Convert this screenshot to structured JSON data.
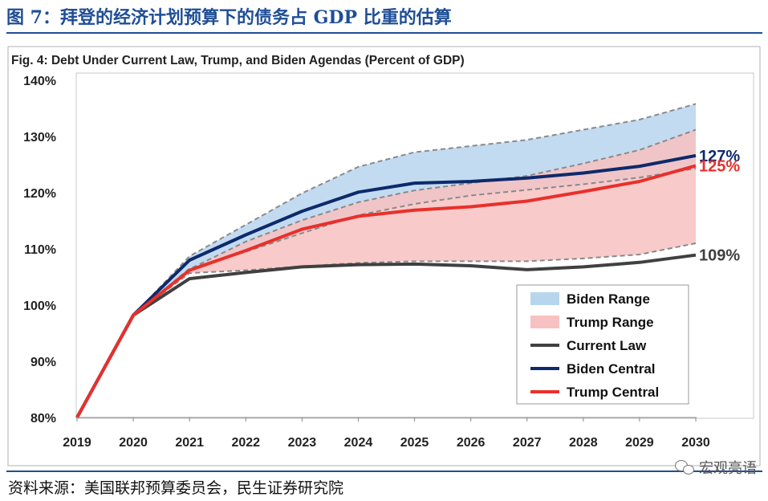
{
  "figure_title": "图 7：拜登的经济计划预算下的债务占 GDP 比重的估算",
  "source": "资料来源：美国联邦预算委员会，民生证券研究院",
  "watermark": "宏观亮语",
  "chart_data": {
    "type": "line",
    "title": "Fig. 4: Debt Under Current Law, Trump, and Biden Agendas (Percent of GDP)",
    "xlabel": "",
    "ylabel": "",
    "x": [
      2019,
      2020,
      2021,
      2022,
      2023,
      2024,
      2025,
      2026,
      2027,
      2028,
      2029,
      2030
    ],
    "ylim": [
      80,
      140
    ],
    "yticks": [
      80,
      90,
      100,
      110,
      120,
      130,
      140
    ],
    "ytick_labels": [
      "80%",
      "90%",
      "100%",
      "110%",
      "120%",
      "130%",
      "140%"
    ],
    "grid": false,
    "legend_position": "lower-right",
    "series": [
      {
        "name": "Current Law",
        "color": "#404040",
        "values": [
          80,
          98.2,
          104.7,
          105.8,
          106.8,
          107.2,
          107.3,
          107.0,
          106.3,
          106.8,
          107.6,
          108.9
        ]
      },
      {
        "name": "Biden Central",
        "color": "#0d2a6b",
        "values": [
          80,
          98.2,
          108.0,
          112.5,
          116.7,
          120.1,
          121.7,
          122.0,
          122.6,
          123.5,
          124.7,
          126.6
        ]
      },
      {
        "name": "Trump Central",
        "color": "#e8302b",
        "values": [
          80,
          98.2,
          106.2,
          109.7,
          113.5,
          115.8,
          116.9,
          117.5,
          118.5,
          120.2,
          122.0,
          124.8
        ]
      }
    ],
    "bands": [
      {
        "name": "Biden Range",
        "color": "#b8d5ee",
        "low": [
          80,
          98.2,
          106.5,
          109.5,
          112.8,
          116.0,
          118.0,
          119.5,
          120.5,
          121.5,
          122.7,
          124.3
        ],
        "high": [
          80,
          98.2,
          108.7,
          114.3,
          119.9,
          124.6,
          127.2,
          128.3,
          129.4,
          131.2,
          133.0,
          135.8
        ]
      },
      {
        "name": "Trump Range",
        "color": "#f8c1c1",
        "low": [
          80,
          98.2,
          105.7,
          106.2,
          106.9,
          107.5,
          107.8,
          107.8,
          107.8,
          108.3,
          109.0,
          111.0
        ],
        "high": [
          80,
          98.2,
          106.4,
          111.3,
          115.1,
          118.3,
          120.4,
          121.7,
          123.0,
          125.2,
          127.6,
          131.2
        ]
      }
    ],
    "end_labels": [
      {
        "series": "Biden Central",
        "text": "127%",
        "color": "#0d2a6b"
      },
      {
        "series": "Trump Central",
        "text": "125%",
        "color": "#e8302b"
      },
      {
        "series": "Current Law",
        "text": "109%",
        "color": "#404040"
      }
    ],
    "legend": [
      {
        "name": "Biden Range",
        "kind": "area",
        "color": "#b8d5ee"
      },
      {
        "name": "Trump Range",
        "kind": "area",
        "color": "#f8c1c1"
      },
      {
        "name": "Current Law",
        "kind": "line",
        "color": "#404040"
      },
      {
        "name": "Biden Central",
        "kind": "line",
        "color": "#0d2a6b"
      },
      {
        "name": "Trump Central",
        "kind": "line",
        "color": "#e8302b"
      }
    ]
  }
}
